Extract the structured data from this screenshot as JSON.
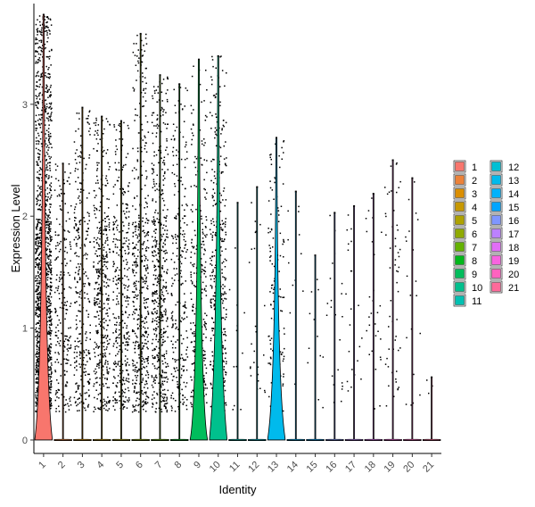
{
  "chart_data": {
    "type": "violin",
    "xlabel": "Identity",
    "ylabel": "Expression Level",
    "ylim": [
      -0.12,
      3.9
    ],
    "yticks": [
      0,
      1,
      2,
      3
    ],
    "categories": [
      "1",
      "2",
      "3",
      "4",
      "5",
      "6",
      "7",
      "8",
      "9",
      "10",
      "11",
      "12",
      "13",
      "14",
      "15",
      "16",
      "17",
      "18",
      "19",
      "20",
      "21"
    ],
    "series_colors": [
      "#F8766D",
      "#EC8239",
      "#DB8E00",
      "#C79800",
      "#AEA200",
      "#8FAA00",
      "#64B200",
      "#00B81B",
      "#00BD5C",
      "#00C08D",
      "#00C1B2",
      "#00BFD4",
      "#00BAEC",
      "#00B2FB",
      "#00A5FF",
      "#7F96FF",
      "#BC81FF",
      "#E26EF7",
      "#F863DF",
      "#FF62BF",
      "#FF6A9A"
    ],
    "max_expression": [
      3.8,
      2.47,
      2.97,
      2.89,
      2.85,
      3.63,
      3.26,
      3.18,
      3.4,
      3.43,
      2.12,
      2.26,
      2.7,
      2.22,
      1.65,
      2.03,
      2.09,
      2.2,
      2.5,
      2.34,
      0.56
    ],
    "violin_bulge_height": [
      0.2,
      0,
      0,
      0,
      0,
      0,
      0,
      0,
      0.1,
      0.3,
      0,
      0,
      0.2,
      0,
      0,
      0,
      0,
      0,
      0,
      0,
      0
    ],
    "point_density": [
      1500,
      220,
      300,
      420,
      360,
      480,
      520,
      260,
      300,
      420,
      12,
      25,
      150,
      12,
      12,
      22,
      22,
      28,
      55,
      20,
      3
    ],
    "legend": {
      "title": "",
      "columns": [
        [
          "1",
          "2",
          "3",
          "4",
          "5",
          "6",
          "7",
          "8",
          "9",
          "10",
          "11"
        ],
        [
          "12",
          "13",
          "14",
          "15",
          "16",
          "17",
          "18",
          "19",
          "20",
          "21"
        ]
      ]
    }
  }
}
